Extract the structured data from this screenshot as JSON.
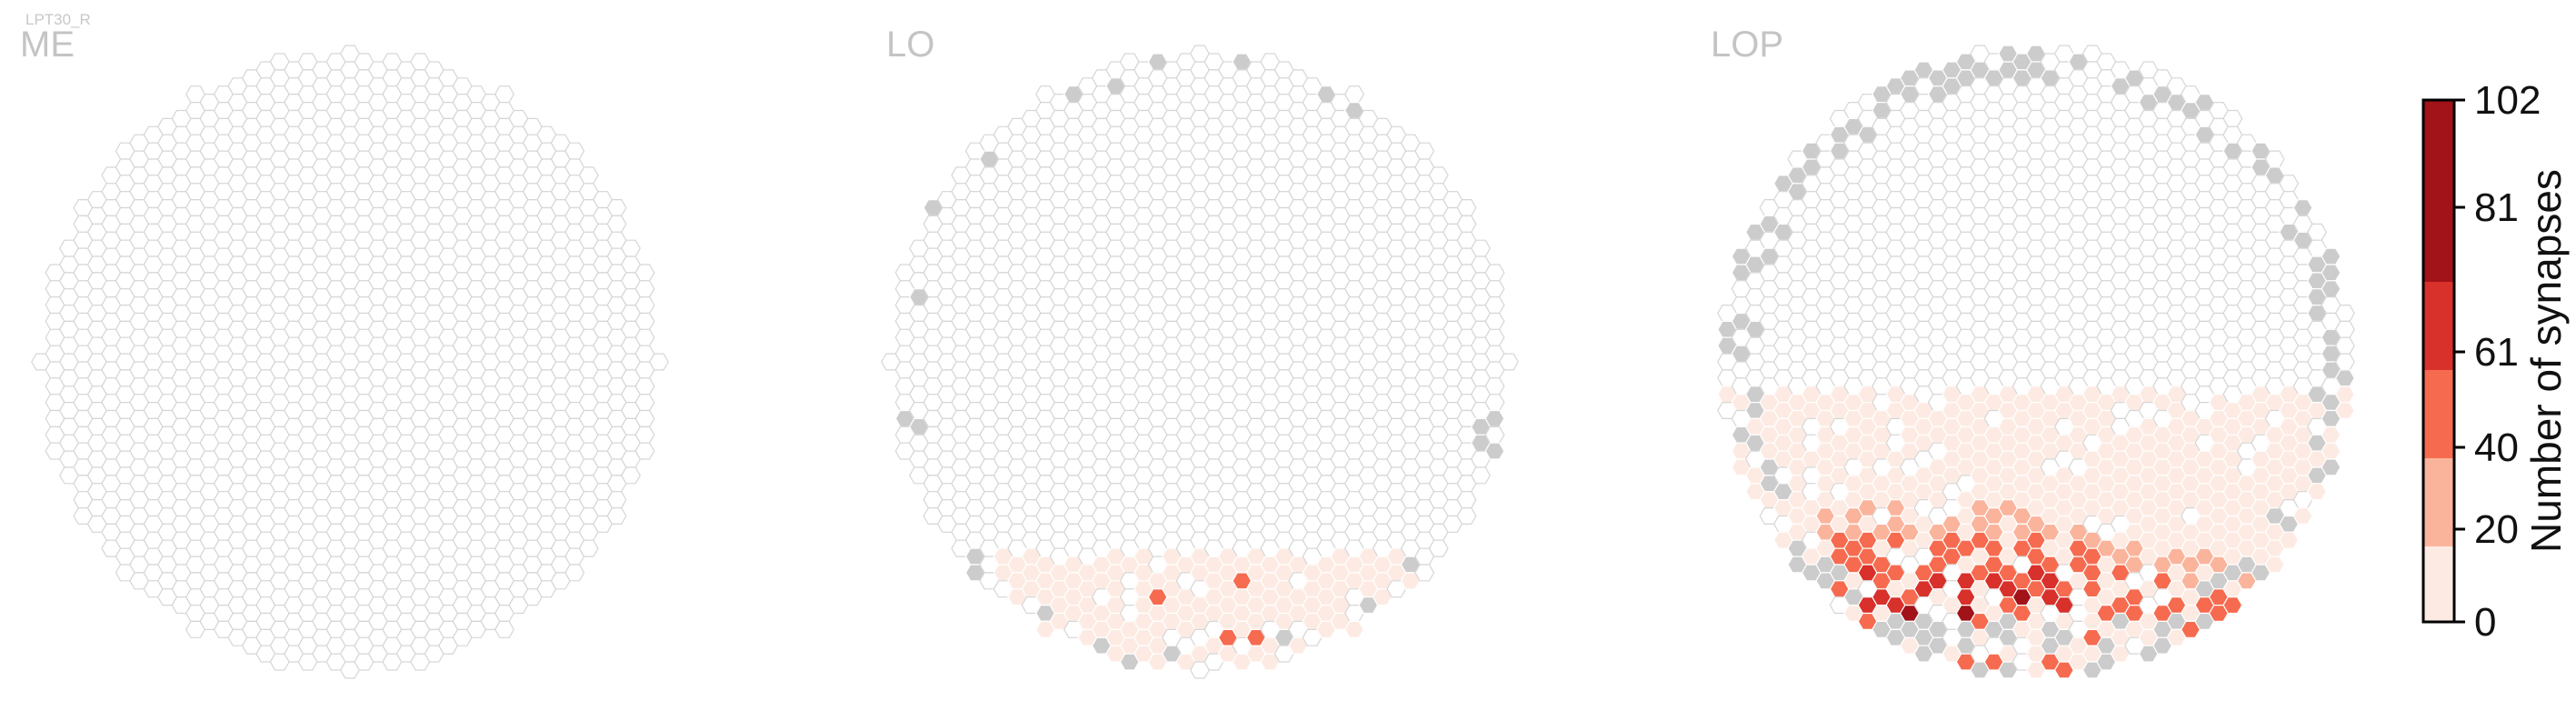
{
  "figure_label": "LPT30_R",
  "colors": {
    "empty_fill": "#ffffff",
    "empty_stroke": "#d6d6d6",
    "no_data_fill": "#cccccc",
    "bins": [
      "#fdebe3",
      "#fbb49c",
      "#f66b4f",
      "#d8302b",
      "#a11219"
    ]
  },
  "chart_data": [
    {
      "type": "heatmap",
      "layout": "hexagonal",
      "title": "ME",
      "cells_with_synapses": [],
      "no_data_cells": []
    },
    {
      "type": "heatmap",
      "layout": "hexagonal",
      "title": "LO",
      "cells_with_synapses": [
        {
          "region": "lower band",
          "count_range": [
            1,
            20
          ],
          "approx_cells": 70
        },
        {
          "region": "lower-left edge",
          "count_range": [
            40,
            61
          ],
          "approx_cells": 1
        },
        {
          "region": "lower center",
          "count_range": [
            40,
            61
          ],
          "approx_cells": 1
        }
      ],
      "no_data_cells": 14
    },
    {
      "type": "heatmap",
      "layout": "hexagonal",
      "title": "LOP",
      "cells_with_synapses": [
        {
          "region": "lower half",
          "count_range": [
            1,
            20
          ],
          "approx_cells": 220
        },
        {
          "region": "lower third",
          "count_range": [
            20,
            40
          ],
          "approx_cells": 45
        },
        {
          "region": "bottom",
          "count_range": [
            40,
            61
          ],
          "approx_cells": 35
        },
        {
          "region": "bottom",
          "count_range": [
            61,
            81
          ],
          "approx_cells": 14
        },
        {
          "region": "bottom-left",
          "count_range": [
            81,
            102
          ],
          "approx_cells": 3
        }
      ],
      "no_data_cells": 60
    }
  ],
  "colorbar": {
    "label": "Number of synapses",
    "ticks": [
      "0",
      "20",
      "40",
      "61",
      "81",
      "102"
    ],
    "tick_values": [
      0,
      20,
      40,
      61,
      81,
      102
    ],
    "range": [
      0,
      102
    ]
  }
}
